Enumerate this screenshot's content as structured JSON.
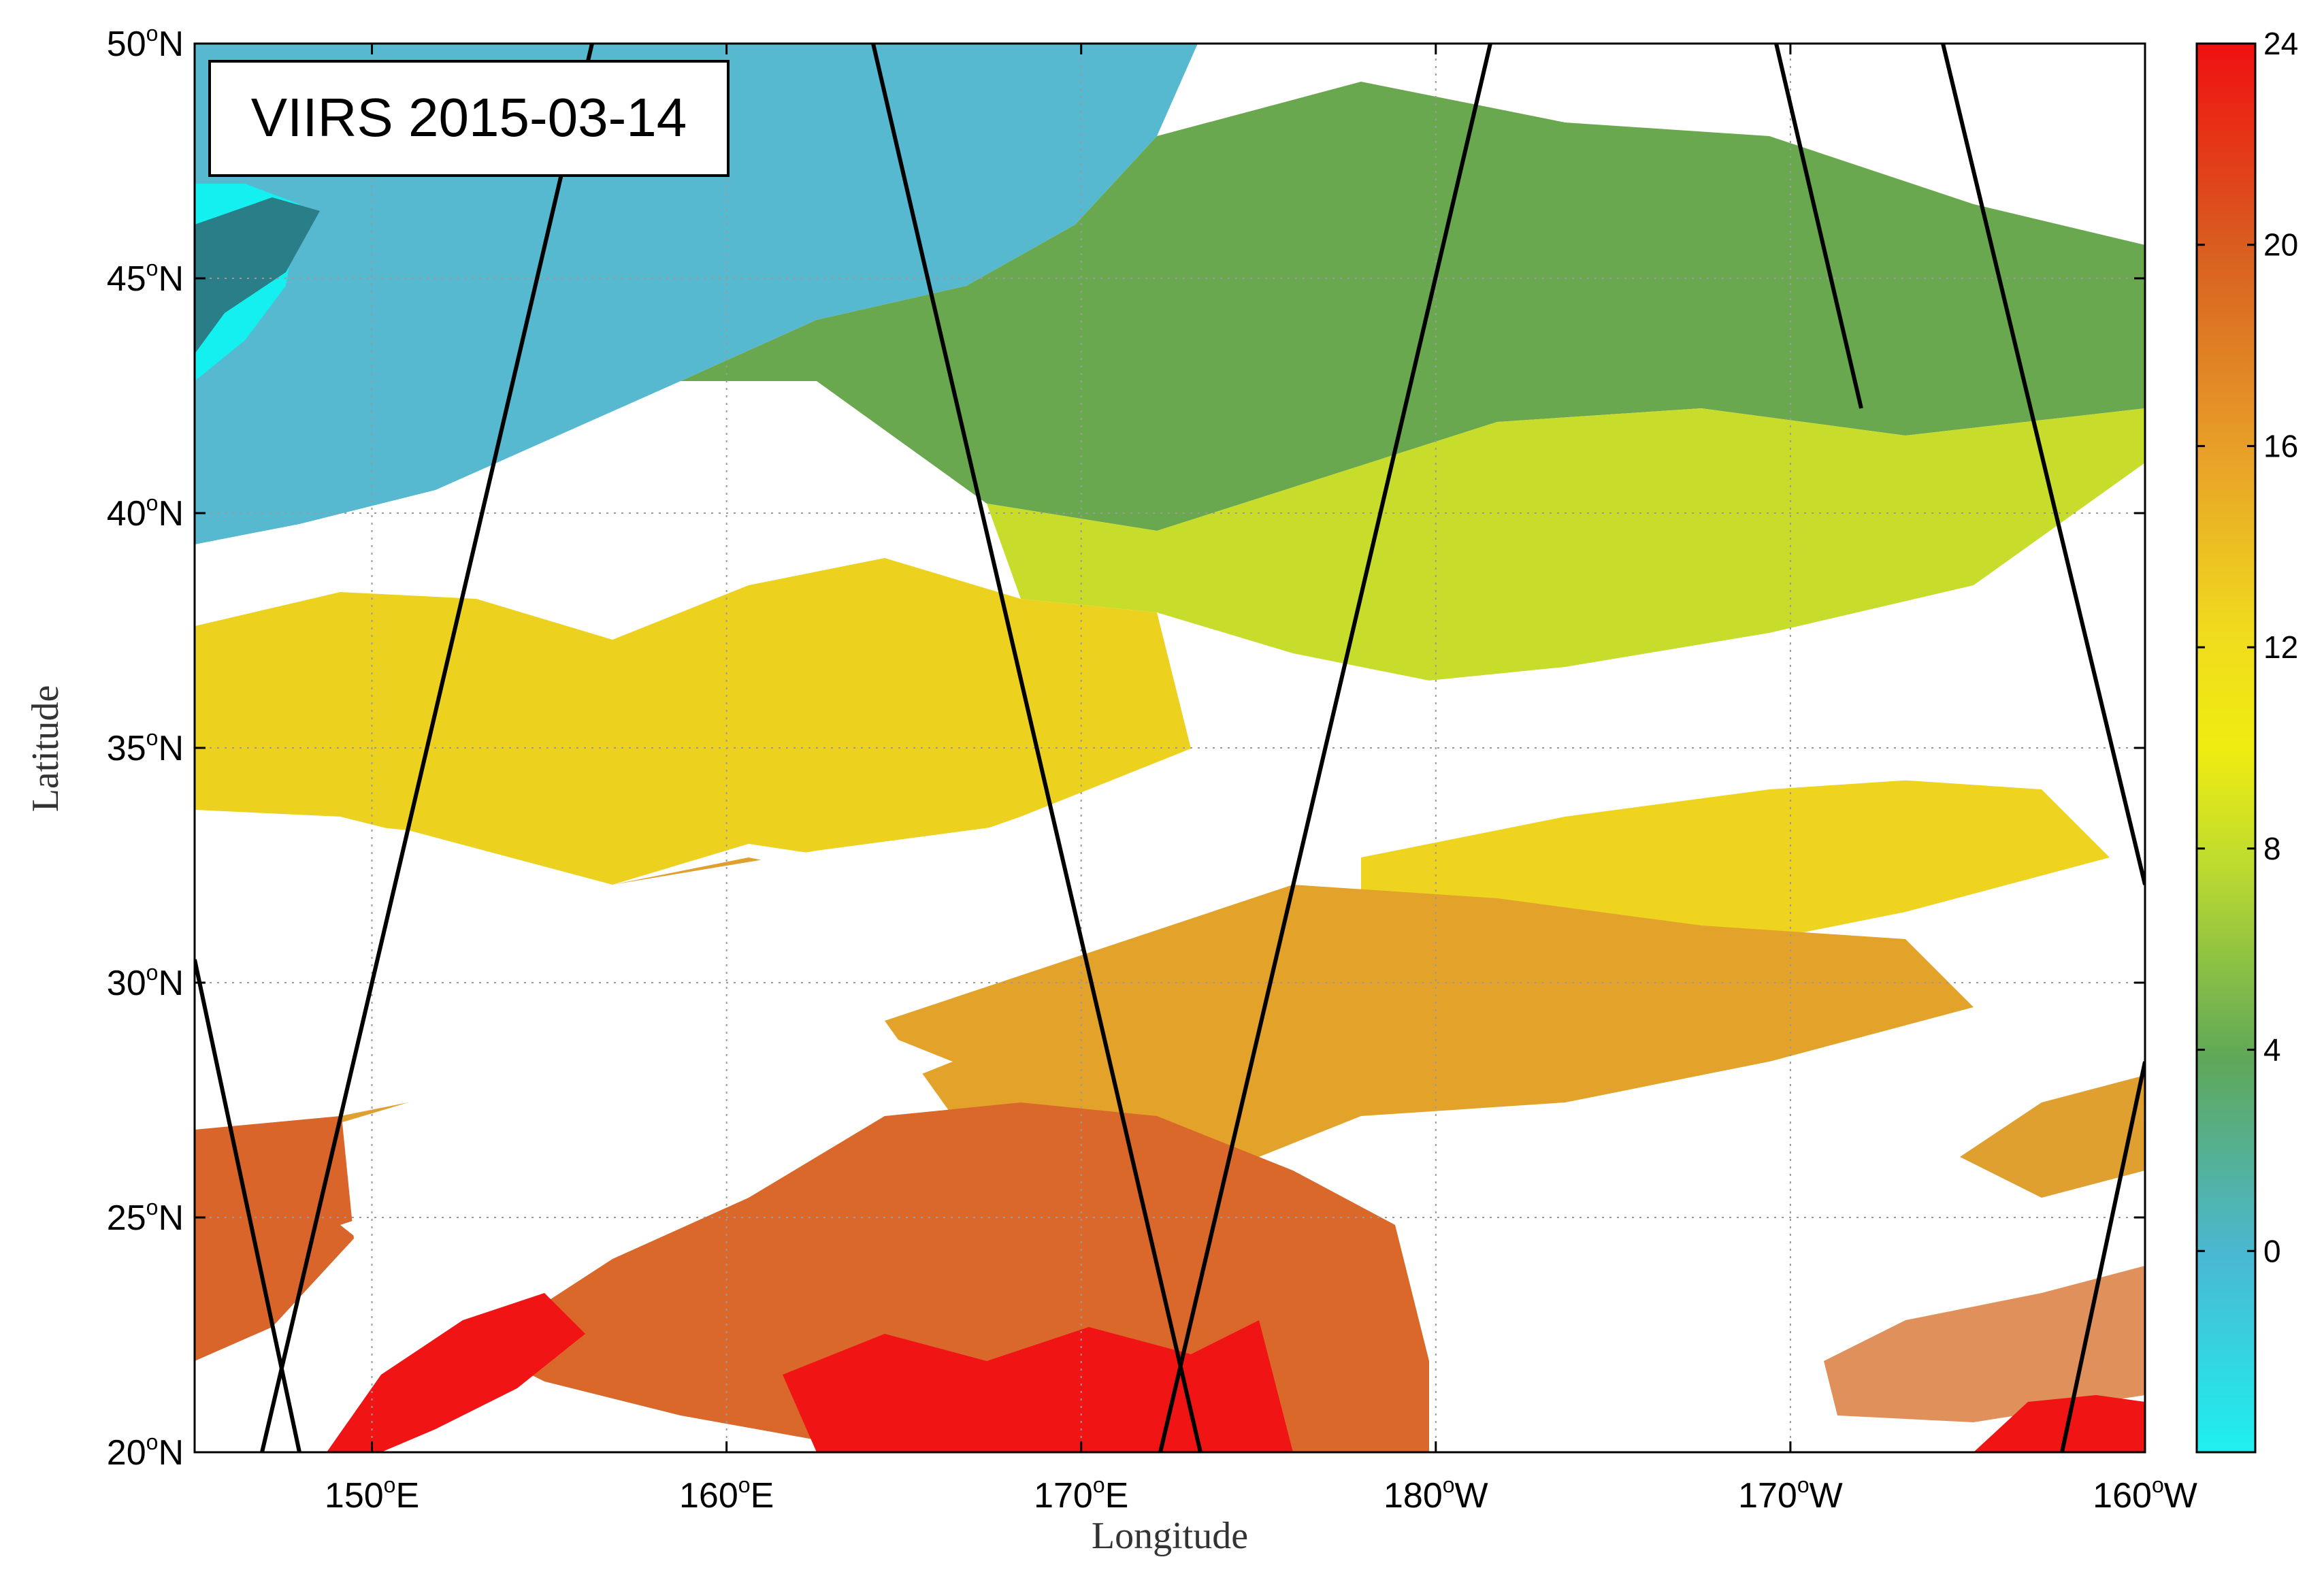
{
  "title": "VIIRS 2015-03-14",
  "map": {
    "ylabel": "Latitude",
    "xlabel": "Longitude",
    "lat_ticks": [
      {
        "num": "20",
        "dir": "N"
      },
      {
        "num": "25",
        "dir": "N"
      },
      {
        "num": "30",
        "dir": "N"
      },
      {
        "num": "35",
        "dir": "N"
      },
      {
        "num": "40",
        "dir": "N"
      },
      {
        "num": "45",
        "dir": "N"
      },
      {
        "num": "50",
        "dir": "N"
      }
    ],
    "lon_ticks": [
      {
        "num": "150",
        "dir": "E"
      },
      {
        "num": "160",
        "dir": "E"
      },
      {
        "num": "170",
        "dir": "E"
      },
      {
        "num": "180",
        "dir": "W"
      },
      {
        "num": "170",
        "dir": "W"
      },
      {
        "num": "160",
        "dir": "W"
      }
    ],
    "degree_symbol": "o",
    "extent": {
      "lon_min": 145,
      "lon_max": 200,
      "lat_min": 20,
      "lat_max": 50
    },
    "gridlines": true
  },
  "colorbar": {
    "ticks": [
      "0",
      "4",
      "8",
      "12",
      "16",
      "20",
      "24"
    ],
    "range": [
      -4,
      24
    ],
    "colors": [
      "#1ef0f0",
      "#4ab8d2",
      "#5fa858",
      "#bfdc2e",
      "#f0dc1e",
      "#e8a028",
      "#d86020",
      "#f01010"
    ]
  }
}
